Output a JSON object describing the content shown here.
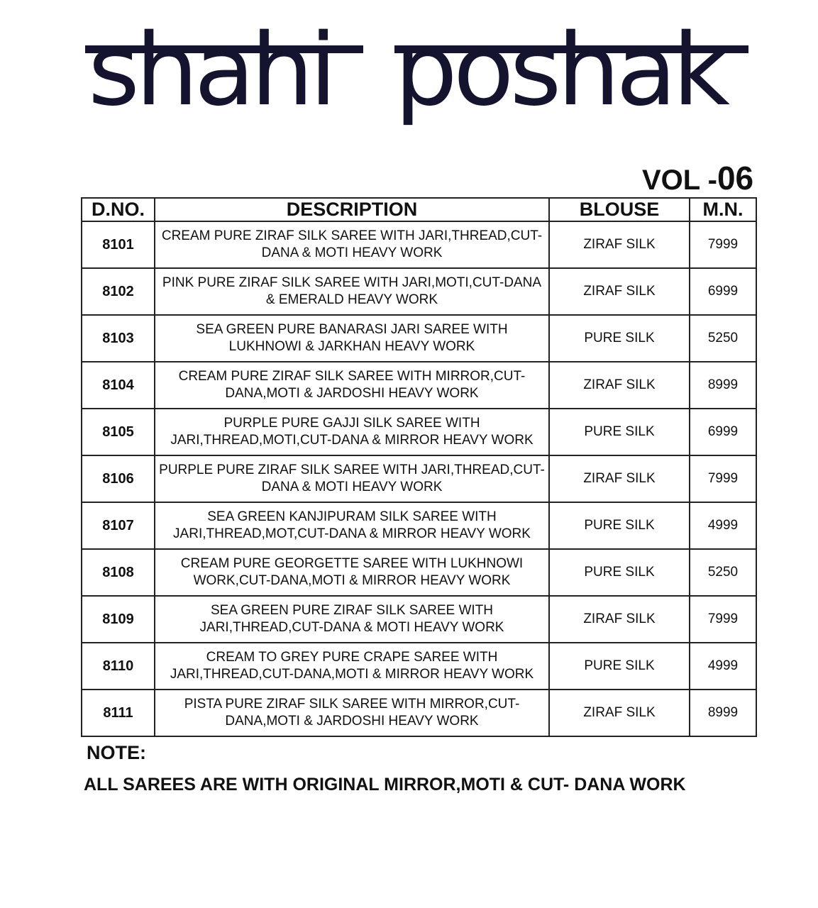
{
  "brand": {
    "title_word1": "shahi",
    "title_word2": "poshak",
    "volume_prefix": "VOL -",
    "volume_number": "06",
    "title_color": "#14142e"
  },
  "table": {
    "headers": [
      "D.NO.",
      "DESCRIPTION",
      "BLOUSE",
      "M.N."
    ],
    "rows": [
      {
        "dno": "8101",
        "description": "CREAM PURE ZIRAF SILK SAREE WITH JARI,THREAD,CUT-DANA & MOTI HEAVY WORK",
        "blouse": "ZIRAF SILK",
        "mn": "7999"
      },
      {
        "dno": "8102",
        "description": "PINK PURE ZIRAF SILK SAREE WITH JARI,MOTI,CUT-DANA & EMERALD HEAVY WORK",
        "blouse": "ZIRAF SILK",
        "mn": "6999"
      },
      {
        "dno": "8103",
        "description": "SEA GREEN PURE BANARASI JARI SAREE WITH LUKHNOWI & JARKHAN HEAVY WORK",
        "blouse": "PURE SILK",
        "mn": "5250"
      },
      {
        "dno": "8104",
        "description": "CREAM PURE ZIRAF SILK SAREE WITH MIRROR,CUT-DANA,MOTI & JARDOSHI HEAVY WORK",
        "blouse": "ZIRAF SILK",
        "mn": "8999"
      },
      {
        "dno": "8105",
        "description": "PURPLE PURE GAJJI SILK SAREE WITH JARI,THREAD,MOTI,CUT-DANA & MIRROR HEAVY WORK",
        "blouse": "PURE SILK",
        "mn": "6999"
      },
      {
        "dno": "8106",
        "description": "PURPLE PURE ZIRAF SILK SAREE WITH JARI,THREAD,CUT-DANA & MOTI HEAVY WORK",
        "blouse": "ZIRAF SILK",
        "mn": "7999"
      },
      {
        "dno": "8107",
        "description": "SEA GREEN KANJIPURAM SILK SAREE WITH JARI,THREAD,MOT,CUT-DANA & MIRROR HEAVY WORK",
        "blouse": "PURE SILK",
        "mn": "4999"
      },
      {
        "dno": "8108",
        "description": "CREAM PURE GEORGETTE SAREE WITH LUKHNOWI WORK,CUT-DANA,MOTI & MIRROR HEAVY WORK",
        "blouse": "PURE SILK",
        "mn": "5250"
      },
      {
        "dno": "8109",
        "description": "SEA GREEN PURE ZIRAF SILK SAREE WITH JARI,THREAD,CUT-DANA & MOTI HEAVY WORK",
        "blouse": "ZIRAF SILK",
        "mn": "7999"
      },
      {
        "dno": "8110",
        "description": "CREAM TO GREY PURE CRAPE SAREE WITH JARI,THREAD,CUT-DANA,MOTI & MIRROR HEAVY WORK",
        "blouse": "PURE SILK",
        "mn": "4999"
      },
      {
        "dno": "8111",
        "description": "PISTA PURE ZIRAF SILK SAREE WITH MIRROR,CUT-DANA,MOTI & JARDOSHI HEAVY WORK",
        "blouse": "ZIRAF SILK",
        "mn": "8999"
      }
    ]
  },
  "note": {
    "label": "NOTE:",
    "text": "ALL SAREES ARE WITH ORIGINAL MIRROR,MOTI & CUT- DANA WORK"
  }
}
